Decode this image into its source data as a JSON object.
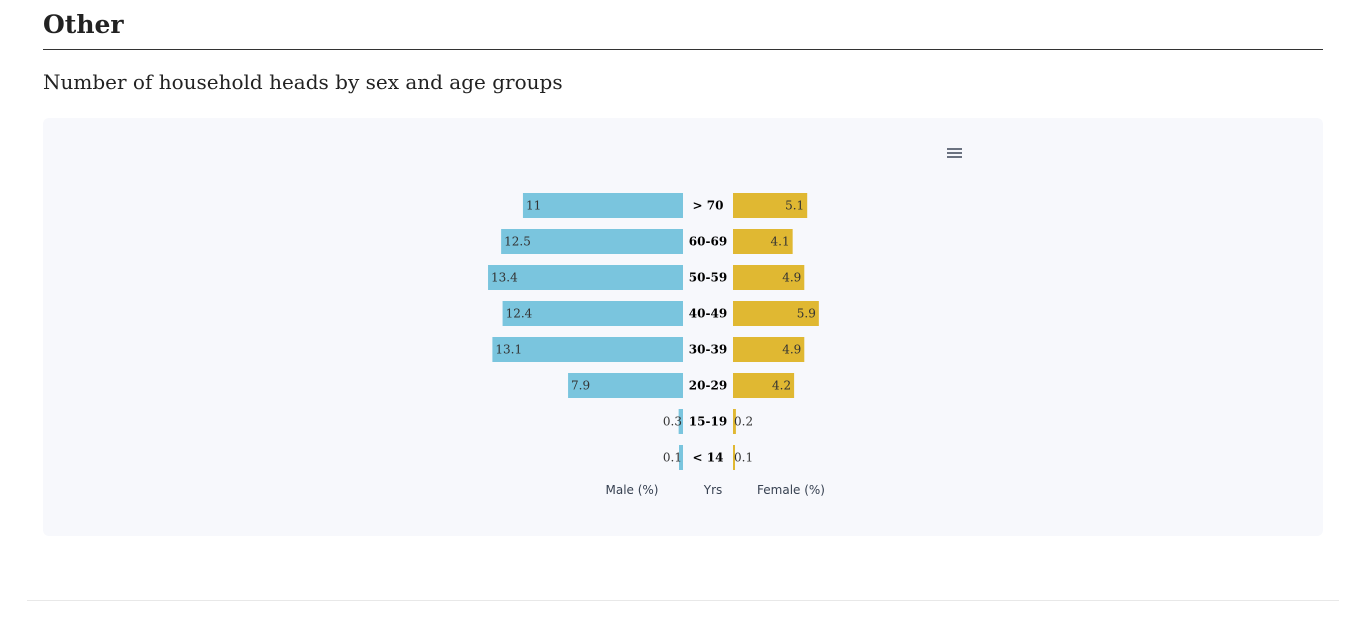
{
  "section": {
    "title": "Other"
  },
  "chart": {
    "heading": "Number of household heads by sex and age groups",
    "menu_icon": "hamburger-menu-icon"
  },
  "chart_data": {
    "type": "bar",
    "orientation": "horizontal",
    "layout": "population-pyramid",
    "categories": [
      "> 70",
      "60-69",
      "50-59",
      "40-49",
      "30-39",
      "20-29",
      "15-19",
      "< 14"
    ],
    "series": [
      {
        "name": "Male (%)",
        "color": "#7ac5de",
        "values": [
          11,
          12.5,
          13.4,
          12.4,
          13.1,
          7.9,
          0.3,
          0.1
        ]
      },
      {
        "name": "Female (%)",
        "color": "#e0b832",
        "values": [
          5.1,
          4.1,
          4.9,
          5.9,
          4.9,
          4.2,
          0.2,
          0.1
        ]
      }
    ],
    "center_label": "Yrs",
    "grid": false
  }
}
